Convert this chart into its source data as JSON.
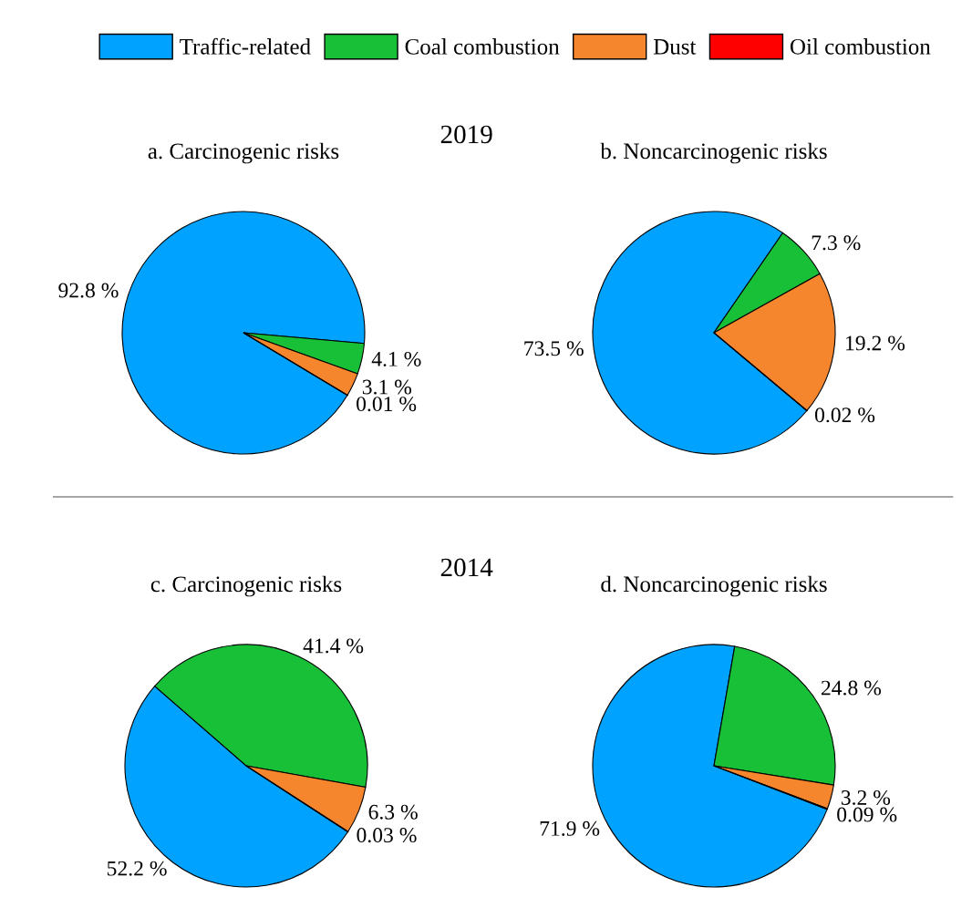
{
  "chart_data": [
    {
      "type": "pie",
      "title": "a. Carcinogenic risks",
      "annotations": [
        "2019"
      ],
      "legend": "top",
      "categories": [
        "Traffic-related",
        "Coal combustion",
        "Dust",
        "Oil combustion"
      ],
      "values": [
        92.8,
        4.1,
        3.1,
        0.01
      ],
      "value_labels": [
        "92.8 %",
        "4.1 %",
        "3.1 %",
        "0.01 %"
      ],
      "colors": [
        "#00a2ff",
        "#17c037",
        "#f5862e",
        "#ff0000"
      ]
    },
    {
      "type": "pie",
      "title": "b. Noncarcinogenic risks",
      "categories": [
        null,
        null,
        null,
        null
      ],
      "values": [
        73.5,
        7.3,
        19.2,
        0.02
      ],
      "value_labels": [
        "73.5 %",
        "7.3 %",
        "19.2 %",
        "0.02 %"
      ],
      "colors": [
        "#00a2ff",
        "#17c037",
        "#f5862e",
        "#ff0000"
      ]
    },
    {
      "type": "pie",
      "title": "c. Carcinogenic risks",
      "annotations": [
        "2014"
      ],
      "categories": [
        null,
        null,
        null,
        null
      ],
      "values": [
        52.2,
        41.4,
        6.3,
        0.03
      ],
      "value_labels": [
        "52.2 %",
        "41.4 %",
        "6.3 %",
        "0.03 %"
      ],
      "colors": [
        "#00a2ff",
        "#17c037",
        "#f5862e",
        "#ff0000"
      ]
    },
    {
      "type": "pie",
      "title": "d. Noncarcinogenic risks",
      "categories": [
        null,
        null,
        null,
        null
      ],
      "values": [
        71.9,
        24.8,
        3.2,
        0.09
      ],
      "value_labels": [
        "71.9 %",
        "24.8 %",
        "3.2 %",
        "0.09 %"
      ],
      "colors": [
        "#00a2ff",
        "#17c037",
        "#f5862e",
        "#ff0000"
      ]
    }
  ]
}
